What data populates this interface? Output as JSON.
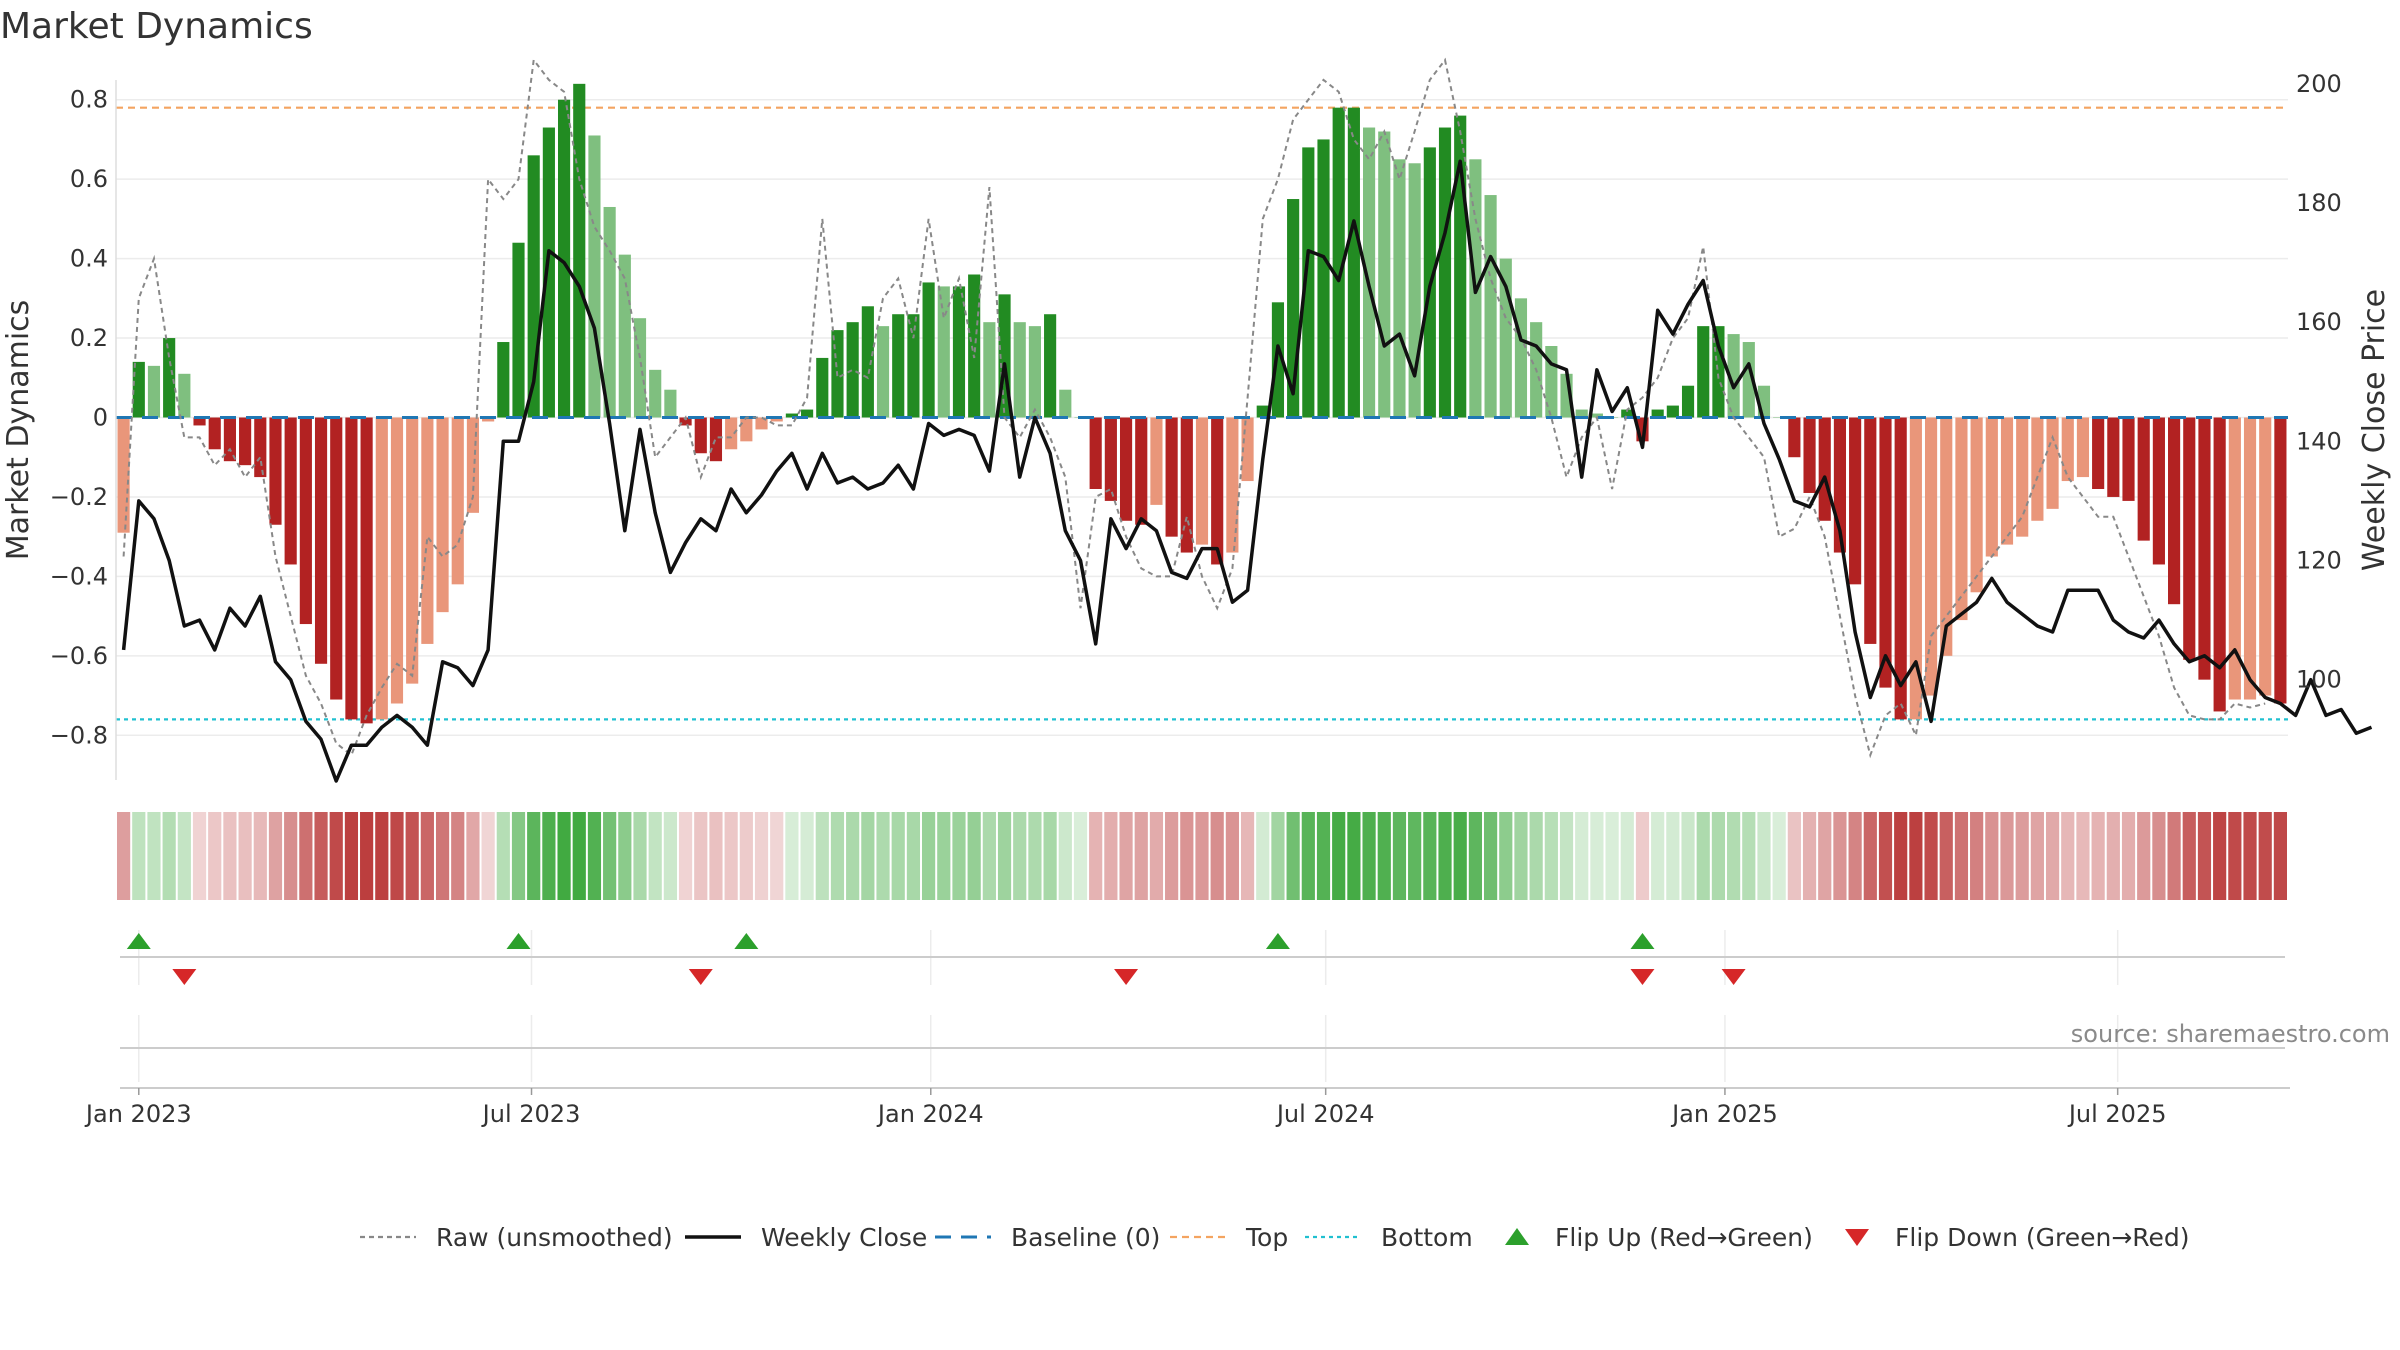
{
  "chart_data": {
    "type": "bar",
    "title": "Market Dynamics",
    "ylabel": "Market Dynamics",
    "y2label": "Weekly Close Price",
    "ylim": [
      -0.9,
      0.9
    ],
    "y2lim": [
      84,
      204
    ],
    "y_ticks": [
      "0.8",
      "0.6",
      "0.4",
      "0.2",
      "0",
      "−0.2",
      "−0.4",
      "−0.6",
      "−0.8"
    ],
    "y_tick_values": [
      0.8,
      0.6,
      0.4,
      0.2,
      0,
      -0.2,
      -0.4,
      -0.6,
      -0.8
    ],
    "y2_ticks": [
      "200",
      "180",
      "160",
      "140",
      "120",
      "100"
    ],
    "y2_tick_values": [
      200,
      180,
      160,
      140,
      120,
      100
    ],
    "x_ticks": [
      "Jan 2023",
      "Jul 2023",
      "Jan 2024",
      "Jul 2024",
      "Jan 2025",
      "Jul 2025"
    ],
    "x_tick_dates": [
      "2023-01-01",
      "2023-07-01",
      "2024-01-01",
      "2024-07-01",
      "2025-01-01",
      "2025-07-01"
    ],
    "top_level": 0.78,
    "bottom_level": -0.76,
    "baseline": 0,
    "grid": true,
    "legend_position": "bottom",
    "source": "source: sharemaestro.com",
    "legend": [
      {
        "key": "raw",
        "label": "Raw (unsmoothed)"
      },
      {
        "key": "close",
        "label": "Weekly Close"
      },
      {
        "key": "baseline",
        "label": "Baseline (0)"
      },
      {
        "key": "top",
        "label": "Top"
      },
      {
        "key": "bottom",
        "label": "Bottom"
      },
      {
        "key": "flip_up",
        "label": "Flip Up (Red→Green)"
      },
      {
        "key": "flip_down",
        "label": "Flip Down (Green→Red)"
      }
    ],
    "colors": {
      "strong_green": "#228b22",
      "light_green": "#7fbf7f",
      "strong_red": "#b22222",
      "light_red": "#e9967a",
      "raw": "#888888",
      "close": "#111111",
      "baseline": "#1f77b4",
      "top": "#f4a460",
      "bottom": "#20c0d0",
      "flip_up": "#2ca02c",
      "flip_down": "#d62728"
    },
    "flip_up_dates": [
      "2023-01-01",
      "2023-06-25",
      "2023-10-08",
      "2024-06-09",
      "2024-11-24"
    ],
    "flip_down_dates": [
      "2023-01-22",
      "2023-09-17",
      "2024-03-31",
      "2024-11-24",
      "2025-01-05"
    ],
    "series": [
      {
        "name": "Market Dynamics",
        "start": "2022-12-25",
        "step_days": 7,
        "values": [
          -0.29,
          0.14,
          0.13,
          0.2,
          0.11,
          -0.02,
          -0.08,
          -0.11,
          -0.12,
          -0.15,
          -0.27,
          -0.37,
          -0.52,
          -0.62,
          -0.71,
          -0.76,
          -0.77,
          -0.76,
          -0.72,
          -0.67,
          -0.57,
          -0.49,
          -0.42,
          -0.24,
          -0.01,
          0.19,
          0.44,
          0.66,
          0.73,
          0.8,
          0.84,
          0.71,
          0.53,
          0.41,
          0.25,
          0.12,
          0.07,
          -0.02,
          -0.09,
          -0.11,
          -0.08,
          -0.06,
          -0.03,
          -0.01,
          0.01,
          0.02,
          0.15,
          0.22,
          0.24,
          0.28,
          0.23,
          0.26,
          0.26,
          0.34,
          0.33,
          0.33,
          0.36,
          0.24,
          0.31,
          0.24,
          0.23,
          0.26,
          0.07,
          0,
          -0.18,
          -0.21,
          -0.26,
          -0.27,
          -0.22,
          -0.3,
          -0.34,
          -0.32,
          -0.37,
          -0.34,
          -0.16,
          0.03,
          0.29,
          0.55,
          0.68,
          0.7,
          0.78,
          0.78,
          0.73,
          0.72,
          0.65,
          0.64,
          0.68,
          0.73,
          0.76,
          0.65,
          0.56,
          0.4,
          0.3,
          0.24,
          0.18,
          0.11,
          0.02,
          0.01,
          0,
          0.02,
          -0.06,
          0.02,
          0.03,
          0.08,
          0.23,
          0.23,
          0.21,
          0.19,
          0.08,
          0,
          -0.1,
          -0.19,
          -0.26,
          -0.34,
          -0.42,
          -0.57,
          -0.68,
          -0.76,
          -0.76,
          -0.7,
          -0.6,
          -0.51,
          -0.44,
          -0.35,
          -0.32,
          -0.3,
          -0.26,
          -0.23,
          -0.16,
          -0.15,
          -0.18,
          -0.2,
          -0.21,
          -0.31,
          -0.37,
          -0.47,
          -0.61,
          -0.66,
          -0.74,
          -0.71,
          -0.71,
          -0.7,
          -0.72
        ]
      },
      {
        "name": "Raw (unsmoothed)",
        "start": "2022-12-25",
        "step_days": 7,
        "values": [
          -0.35,
          0.3,
          0.4,
          0.15,
          -0.05,
          -0.05,
          -0.12,
          -0.08,
          -0.15,
          -0.1,
          -0.35,
          -0.5,
          -0.65,
          -0.72,
          -0.82,
          -0.85,
          -0.75,
          -0.68,
          -0.62,
          -0.65,
          -0.3,
          -0.35,
          -0.32,
          -0.2,
          0.6,
          0.55,
          0.6,
          0.9,
          0.85,
          0.82,
          0.6,
          0.48,
          0.42,
          0.35,
          0.15,
          -0.1,
          -0.05,
          0,
          -0.15,
          -0.05,
          -0.05,
          0,
          0,
          -0.02,
          -0.02,
          0.05,
          0.5,
          0.1,
          0.12,
          0.1,
          0.3,
          0.35,
          0.2,
          0.5,
          0.25,
          0.35,
          0.15,
          0.58,
          0,
          -0.05,
          0.02,
          -0.05,
          -0.15,
          -0.48,
          -0.2,
          -0.18,
          -0.3,
          -0.38,
          -0.4,
          -0.4,
          -0.25,
          -0.4,
          -0.48,
          -0.38,
          0.05,
          0.5,
          0.6,
          0.75,
          0.8,
          0.85,
          0.82,
          0.7,
          0.65,
          0.72,
          0.6,
          0.72,
          0.85,
          0.9,
          0.72,
          0.5,
          0.35,
          0.25,
          0.2,
          0.12,
          0,
          -0.15,
          -0.05,
          0,
          -0.18,
          0.02,
          0.05,
          0.1,
          0.2,
          0.25,
          0.43,
          0.1,
          0,
          -0.05,
          -0.1,
          -0.3,
          -0.28,
          -0.2,
          -0.3,
          -0.5,
          -0.7,
          -0.85,
          -0.75,
          -0.72,
          -0.8,
          -0.55,
          -0.5,
          -0.45,
          -0.4,
          -0.35,
          -0.3,
          -0.25,
          -0.15,
          -0.05,
          -0.15,
          -0.2,
          -0.25,
          -0.25,
          -0.35,
          -0.45,
          -0.55,
          -0.68,
          -0.75,
          -0.76,
          -0.76,
          -0.72,
          -0.73,
          -0.72
        ]
      },
      {
        "name": "Weekly Close",
        "start": "2022-12-25",
        "step_days": 7,
        "values": [
          105,
          130,
          127,
          120,
          109,
          110,
          105,
          112,
          109,
          114,
          103,
          100,
          93,
          90,
          83,
          89,
          89,
          92,
          94,
          92,
          89,
          103,
          102,
          99,
          105,
          140,
          140,
          150,
          172,
          170,
          166,
          159,
          143,
          125,
          142,
          128,
          118,
          123,
          127,
          125,
          132,
          128,
          131,
          135,
          138,
          132,
          138,
          133,
          134,
          132,
          133,
          136,
          132,
          143,
          141,
          142,
          141,
          135,
          153,
          134,
          144,
          138,
          125,
          120,
          106,
          127,
          122,
          127,
          125,
          118,
          117,
          122,
          122,
          113,
          115,
          137,
          156,
          148,
          172,
          171,
          167,
          177,
          166,
          156,
          158,
          151,
          166,
          175,
          187,
          165,
          171,
          166,
          157,
          156,
          153,
          152,
          134,
          152,
          145,
          149,
          139,
          162,
          158,
          163,
          167,
          156,
          149,
          153,
          143,
          137,
          130,
          129,
          134,
          125,
          108,
          97,
          104,
          99,
          103,
          93,
          109,
          111,
          113,
          117,
          113,
          111,
          109,
          108,
          115,
          115,
          115,
          110,
          108,
          107,
          110,
          106,
          103,
          104,
          102,
          105,
          100,
          97,
          96,
          94,
          100,
          94,
          95,
          91,
          92
        ]
      }
    ]
  }
}
